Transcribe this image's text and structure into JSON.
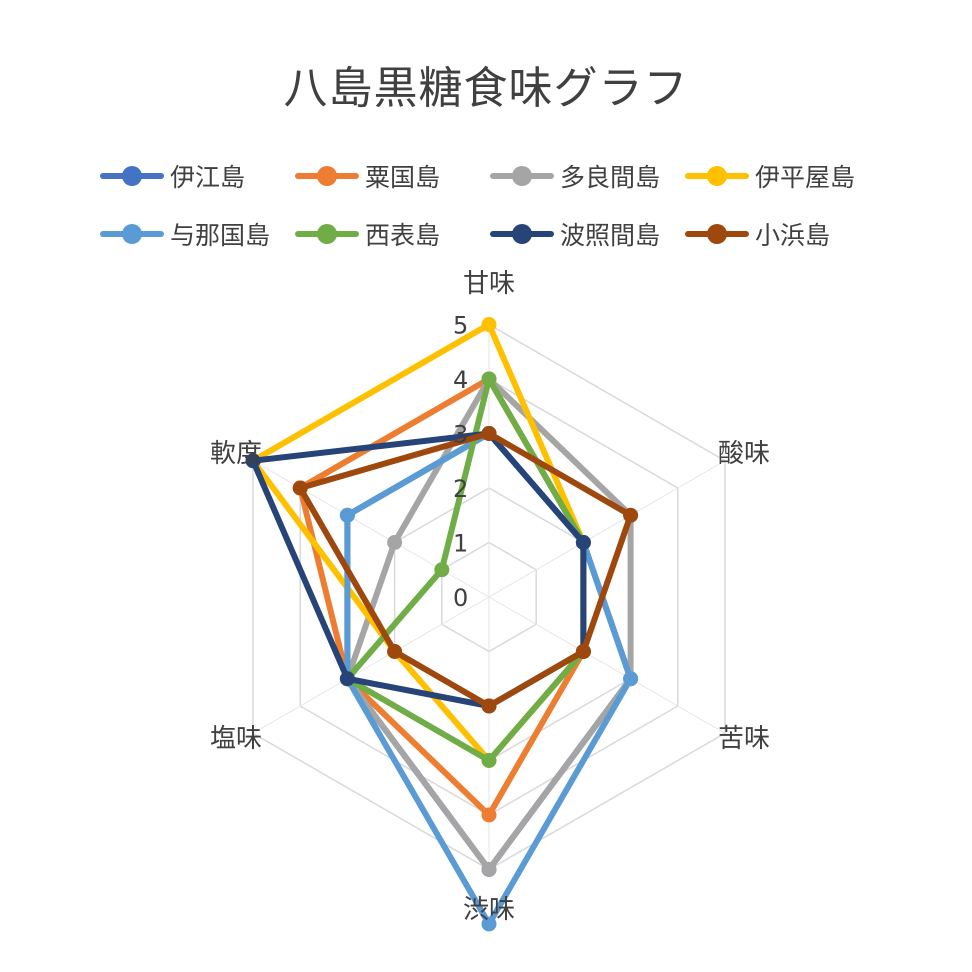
{
  "chart_data": {
    "type": "radar",
    "title": "八島黒糖食味グラフ",
    "axes": [
      "甘味",
      "酸味",
      "苦味",
      "渋味",
      "塩味",
      "軟度"
    ],
    "r_ticks": [
      "0",
      "1",
      "2",
      "3",
      "4",
      "5"
    ],
    "r_range": [
      0,
      5
    ],
    "legend_position": "top",
    "series": [
      {
        "name": "伊江島",
        "color": "#4472C4",
        "values": [
          3,
          2,
          3,
          5,
          3,
          3
        ]
      },
      {
        "name": "粟国島",
        "color": "#ED7D31",
        "values": [
          4,
          2,
          2,
          4,
          3,
          4
        ]
      },
      {
        "name": "多良間島",
        "color": "#A5A5A5",
        "values": [
          4,
          3,
          3,
          5,
          3,
          2
        ]
      },
      {
        "name": "伊平屋島",
        "color": "#FFC000",
        "values": [
          5,
          2,
          2,
          3,
          2,
          5
        ]
      },
      {
        "name": "与那国島",
        "color": "#5B9BD5",
        "values": [
          3,
          2,
          3,
          6,
          3,
          3
        ]
      },
      {
        "name": "西表島",
        "color": "#70AD47",
        "values": [
          4,
          2,
          2,
          3,
          3,
          1
        ]
      },
      {
        "name": "波照間島",
        "color": "#264478",
        "values": [
          3,
          2,
          2,
          2,
          3,
          5
        ]
      },
      {
        "name": "小浜島",
        "color": "#9E480E",
        "values": [
          3,
          3,
          2,
          2,
          2,
          4
        ]
      }
    ]
  }
}
